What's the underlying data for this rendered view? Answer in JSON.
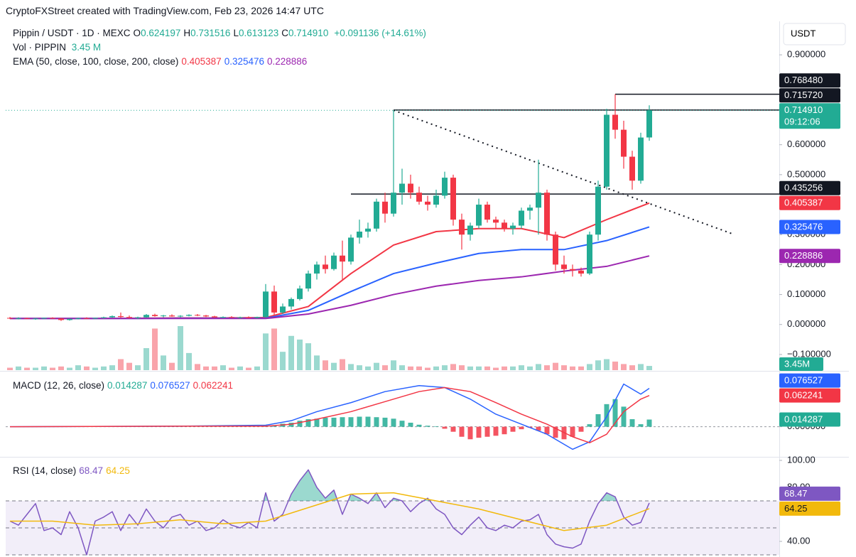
{
  "header": {
    "attribution": "CryptoFXStreet created with TradingView.com, Feb 23, 2026 14:47 UTC",
    "symbol": "Pippin / USDT · 1D · MEXC",
    "ohlc": [
      {
        "key": "O",
        "value": "0.624197"
      },
      {
        "key": "H",
        "value": "0.731516"
      },
      {
        "key": "L",
        "value": "0.613123"
      },
      {
        "key": "C",
        "value": "0.714910"
      }
    ],
    "change": "+0.091136 (+14.61%)",
    "volume": {
      "label": "Vol · PIPPIN",
      "value": "3.45 M"
    },
    "ema_label": "EMA (50, close, 100, close, 200, close)",
    "currency": "USDT"
  },
  "chart_data": [
    {
      "type": "candlestick",
      "up_color": "#22ab94",
      "down_color": "#f23645",
      "ohlc": [
        [
          0.022,
          0.025,
          0.018,
          0.02
        ],
        [
          0.02,
          0.024,
          0.017,
          0.021
        ],
        [
          0.021,
          0.023,
          0.018,
          0.019
        ],
        [
          0.019,
          0.022,
          0.016,
          0.02
        ],
        [
          0.02,
          0.023,
          0.018,
          0.022
        ],
        [
          0.022,
          0.024,
          0.019,
          0.02
        ],
        [
          0.02,
          0.022,
          0.012,
          0.015
        ],
        [
          0.015,
          0.02,
          0.013,
          0.019
        ],
        [
          0.019,
          0.023,
          0.017,
          0.021
        ],
        [
          0.021,
          0.024,
          0.019,
          0.02
        ],
        [
          0.02,
          0.023,
          0.018,
          0.022
        ],
        [
          0.022,
          0.026,
          0.02,
          0.024
        ],
        [
          0.024,
          0.03,
          0.022,
          0.028
        ],
        [
          0.028,
          0.04,
          0.022,
          0.025
        ],
        [
          0.025,
          0.03,
          0.02,
          0.022
        ],
        [
          0.022,
          0.026,
          0.018,
          0.024
        ],
        [
          0.024,
          0.035,
          0.022,
          0.032
        ],
        [
          0.032,
          0.036,
          0.026,
          0.028
        ],
        [
          0.028,
          0.032,
          0.024,
          0.03
        ],
        [
          0.03,
          0.034,
          0.026,
          0.027
        ],
        [
          0.027,
          0.031,
          0.024,
          0.029
        ],
        [
          0.029,
          0.034,
          0.027,
          0.032
        ],
        [
          0.032,
          0.035,
          0.028,
          0.03
        ],
        [
          0.03,
          0.032,
          0.025,
          0.027
        ],
        [
          0.027,
          0.029,
          0.022,
          0.024
        ],
        [
          0.024,
          0.027,
          0.021,
          0.025
        ],
        [
          0.025,
          0.028,
          0.022,
          0.023
        ],
        [
          0.023,
          0.026,
          0.02,
          0.024
        ],
        [
          0.024,
          0.027,
          0.021,
          0.022
        ],
        [
          0.022,
          0.026,
          0.02,
          0.025
        ],
        [
          0.025,
          0.135,
          0.022,
          0.11
        ],
        [
          0.11,
          0.13,
          0.03,
          0.04
        ],
        [
          0.04,
          0.07,
          0.035,
          0.06
        ],
        [
          0.06,
          0.09,
          0.05,
          0.085
        ],
        [
          0.085,
          0.13,
          0.08,
          0.12
        ],
        [
          0.12,
          0.18,
          0.11,
          0.17
        ],
        [
          0.17,
          0.21,
          0.15,
          0.2
        ],
        [
          0.2,
          0.23,
          0.17,
          0.185
        ],
        [
          0.185,
          0.24,
          0.18,
          0.23
        ],
        [
          0.23,
          0.28,
          0.15,
          0.21
        ],
        [
          0.21,
          0.3,
          0.2,
          0.29
        ],
        [
          0.29,
          0.35,
          0.27,
          0.31
        ],
        [
          0.31,
          0.34,
          0.29,
          0.32
        ],
        [
          0.32,
          0.42,
          0.31,
          0.41
        ],
        [
          0.41,
          0.44,
          0.34,
          0.37
        ],
        [
          0.37,
          0.715,
          0.36,
          0.44
        ],
        [
          0.44,
          0.52,
          0.4,
          0.47
        ],
        [
          0.47,
          0.5,
          0.42,
          0.44
        ],
        [
          0.44,
          0.46,
          0.4,
          0.41
        ],
        [
          0.41,
          0.43,
          0.38,
          0.4
        ],
        [
          0.4,
          0.45,
          0.39,
          0.43
        ],
        [
          0.43,
          0.51,
          0.42,
          0.49
        ],
        [
          0.49,
          0.5,
          0.33,
          0.35
        ],
        [
          0.35,
          0.37,
          0.25,
          0.3
        ],
        [
          0.3,
          0.34,
          0.28,
          0.33
        ],
        [
          0.33,
          0.42,
          0.32,
          0.4
        ],
        [
          0.4,
          0.41,
          0.34,
          0.35
        ],
        [
          0.35,
          0.36,
          0.32,
          0.34
        ],
        [
          0.34,
          0.35,
          0.31,
          0.32
        ],
        [
          0.32,
          0.34,
          0.3,
          0.33
        ],
        [
          0.33,
          0.39,
          0.32,
          0.38
        ],
        [
          0.38,
          0.4,
          0.35,
          0.39
        ],
        [
          0.39,
          0.55,
          0.3,
          0.44
        ],
        [
          0.44,
          0.45,
          0.28,
          0.3
        ],
        [
          0.3,
          0.31,
          0.18,
          0.2
        ],
        [
          0.2,
          0.23,
          0.17,
          0.185
        ],
        [
          0.185,
          0.2,
          0.16,
          0.18
        ],
        [
          0.18,
          0.19,
          0.16,
          0.17
        ],
        [
          0.17,
          0.31,
          0.165,
          0.3
        ],
        [
          0.3,
          0.48,
          0.28,
          0.46
        ],
        [
          0.46,
          0.72,
          0.45,
          0.7
        ],
        [
          0.7,
          0.76848,
          0.62,
          0.65
        ],
        [
          0.65,
          0.68,
          0.52,
          0.56
        ],
        [
          0.56,
          0.58,
          0.45,
          0.48
        ],
        [
          0.48,
          0.64,
          0.47,
          0.624
        ],
        [
          0.624197,
          0.731516,
          0.613123,
          0.71491
        ]
      ],
      "volume": {
        "label": "3.45M",
        "values": [
          2,
          3,
          2,
          2,
          3,
          2,
          3,
          2,
          4,
          3,
          2,
          3,
          4,
          9,
          6,
          4,
          18,
          34,
          12,
          6,
          36,
          14,
          5,
          3,
          3,
          4,
          2,
          3,
          2,
          3,
          30,
          34,
          15,
          28,
          25,
          22,
          12,
          8,
          6,
          9,
          5,
          4,
          3,
          6,
          4,
          8,
          4,
          3,
          3,
          2,
          3,
          4,
          5,
          4,
          3,
          3,
          3,
          2,
          3,
          3,
          4,
          3,
          5,
          4,
          6,
          4,
          3,
          3,
          5,
          8,
          9,
          7,
          5,
          4,
          5,
          3.45
        ]
      },
      "series": [
        {
          "color": "#f23645",
          "x": [
            0,
            5,
            10,
            15,
            20,
            25,
            30,
            35,
            40,
            45,
            50,
            55,
            60,
            65,
            70,
            75
          ],
          "values": [
            0.02,
            0.02,
            0.02,
            0.021,
            0.022,
            0.022,
            0.023,
            0.06,
            0.17,
            0.265,
            0.31,
            0.32,
            0.32,
            0.29,
            0.35,
            0.405387
          ]
        },
        {
          "color": "#2962ff",
          "x": [
            0,
            5,
            10,
            15,
            20,
            25,
            30,
            35,
            40,
            45,
            50,
            55,
            60,
            65,
            70,
            75
          ],
          "values": [
            0.02,
            0.02,
            0.02,
            0.02,
            0.021,
            0.021,
            0.021,
            0.047,
            0.11,
            0.17,
            0.205,
            0.237,
            0.25,
            0.25,
            0.28,
            0.325476
          ]
        },
        {
          "color": "#9c27b0",
          "x": [
            0,
            5,
            10,
            15,
            20,
            25,
            30,
            35,
            40,
            45,
            50,
            55,
            60,
            65,
            70,
            75
          ],
          "values": [
            0.02,
            0.02,
            0.02,
            0.02,
            0.02,
            0.02,
            0.02,
            0.035,
            0.064,
            0.1,
            0.128,
            0.147,
            0.159,
            0.178,
            0.194,
            0.228886
          ]
        }
      ],
      "ylim": [
        -0.15,
        1.0
      ],
      "yticks": [
        {
          "value": 0.9,
          "label": "0.900000"
        },
        {
          "value": 0.6,
          "label": "0.600000"
        },
        {
          "value": 0.5,
          "label": "0.500000"
        },
        {
          "value": 0.3,
          "label": "0.300000"
        },
        {
          "value": 0.2,
          "label": "0.200000"
        },
        {
          "value": 0.1,
          "label": "0.100000"
        },
        {
          "value": 0,
          "label": "0.000000"
        },
        {
          "value": -0.1,
          "label": "−0.100000"
        }
      ],
      "price_labels": [
        {
          "value": 0.76848,
          "label": "0.768480",
          "color": "#131722"
        },
        {
          "value": 0.71572,
          "label": "0.715720",
          "color": "#131722"
        },
        {
          "value": 0.71491,
          "label": "0.714910",
          "color": "#22ab94",
          "sub": "09:12:06"
        },
        {
          "value": 0.435256,
          "label": "0.435256",
          "color": "#131722"
        }
      ],
      "levels": [
        {
          "value": 0.71572,
          "from": 45
        },
        {
          "value": 0.76848,
          "from": 71
        },
        {
          "value": 0.435256,
          "from": 40
        }
      ],
      "trendline": {
        "x": [
          45,
          85
        ],
        "y": [
          0.715,
          0.3
        ]
      }
    },
    {
      "type": "macd",
      "title": "MACD (12, 26, close)",
      "histogram": {
        "up_color": "#22ab94",
        "down_color": "#f23645",
        "values": [
          0,
          0,
          0,
          0,
          0,
          0,
          0,
          0,
          0,
          0,
          0,
          0,
          0,
          0,
          0,
          0,
          0,
          0,
          0,
          0,
          0,
          0,
          0,
          0,
          0,
          0,
          0,
          0,
          0,
          0,
          0.002,
          0.003,
          0.006,
          0.008,
          0.012,
          0.015,
          0.016,
          0.018,
          0.018,
          0.019,
          0.019,
          0.02,
          0.02,
          0.019,
          0.018,
          0.016,
          0.012,
          0.008,
          0.004,
          0.002,
          0.001,
          -0.004,
          -0.01,
          -0.02,
          -0.025,
          -0.022,
          -0.02,
          -0.018,
          -0.015,
          -0.01,
          -0.005,
          -0.002,
          -0.008,
          -0.015,
          -0.022,
          -0.025,
          -0.02,
          -0.01,
          0.005,
          0.025,
          0.045,
          0.055,
          0.04,
          0.015,
          0.005,
          0.014287
        ]
      },
      "series": [
        {
          "color": "#2962ff",
          "x": [
            0,
            20,
            30,
            33,
            36,
            40,
            44,
            48,
            51,
            54,
            57,
            60,
            63,
            66,
            68,
            70,
            72,
            74,
            75
          ],
          "values": [
            0,
            0.001,
            0.003,
            0.012,
            0.03,
            0.048,
            0.07,
            0.082,
            0.078,
            0.055,
            0.025,
            0.005,
            -0.015,
            -0.045,
            -0.03,
            0.02,
            0.085,
            0.065,
            0.076527
          ]
        },
        {
          "color": "#f23645",
          "x": [
            0,
            20,
            30,
            33,
            36,
            40,
            44,
            48,
            51,
            54,
            57,
            60,
            63,
            66,
            68,
            70,
            72,
            74,
            75
          ],
          "values": [
            0,
            0.001,
            0.001,
            0.005,
            0.015,
            0.03,
            0.05,
            0.07,
            0.078,
            0.07,
            0.048,
            0.025,
            0.005,
            -0.02,
            -0.032,
            -0.015,
            0.03,
            0.055,
            0.062241
          ]
        }
      ],
      "ylim": [
        -0.06,
        0.1
      ],
      "yticks": [
        {
          "value": 0,
          "label": "0.000000"
        }
      ]
    },
    {
      "type": "rsi",
      "title": "RSI (14, close)",
      "series": [
        {
          "color": "#7e57c2",
          "values": [
            55,
            52,
            60,
            68,
            48,
            50,
            45,
            62,
            50,
            30,
            55,
            58,
            62,
            48,
            60,
            52,
            64,
            55,
            50,
            58,
            60,
            52,
            55,
            48,
            50,
            56,
            52,
            50,
            54,
            50,
            76,
            55,
            60,
            75,
            85,
            93,
            80,
            72,
            78,
            60,
            75,
            72,
            68,
            76,
            65,
            72,
            70,
            62,
            68,
            72,
            64,
            60,
            50,
            45,
            52,
            58,
            50,
            48,
            52,
            50,
            55,
            56,
            60,
            45,
            38,
            36,
            35,
            38,
            55,
            68,
            76,
            73,
            58,
            52,
            54,
            68.47
          ]
        },
        {
          "color": "#f2b90c",
          "x": [
            0,
            5,
            10,
            15,
            20,
            25,
            30,
            35,
            40,
            45,
            50,
            55,
            60,
            65,
            70,
            75
          ],
          "values": [
            55,
            55,
            52,
            53,
            56,
            53,
            55,
            65,
            75,
            76,
            70,
            64,
            56,
            48,
            52,
            64.25
          ]
        }
      ],
      "ylim": [
        30,
        100
      ],
      "yticks": [
        {
          "value": 100,
          "label": "100.00"
        },
        {
          "value": 80,
          "label": "80.00"
        },
        {
          "value": 40,
          "label": "40.00"
        }
      ],
      "levels": [
        70,
        50,
        30
      ]
    }
  ]
}
